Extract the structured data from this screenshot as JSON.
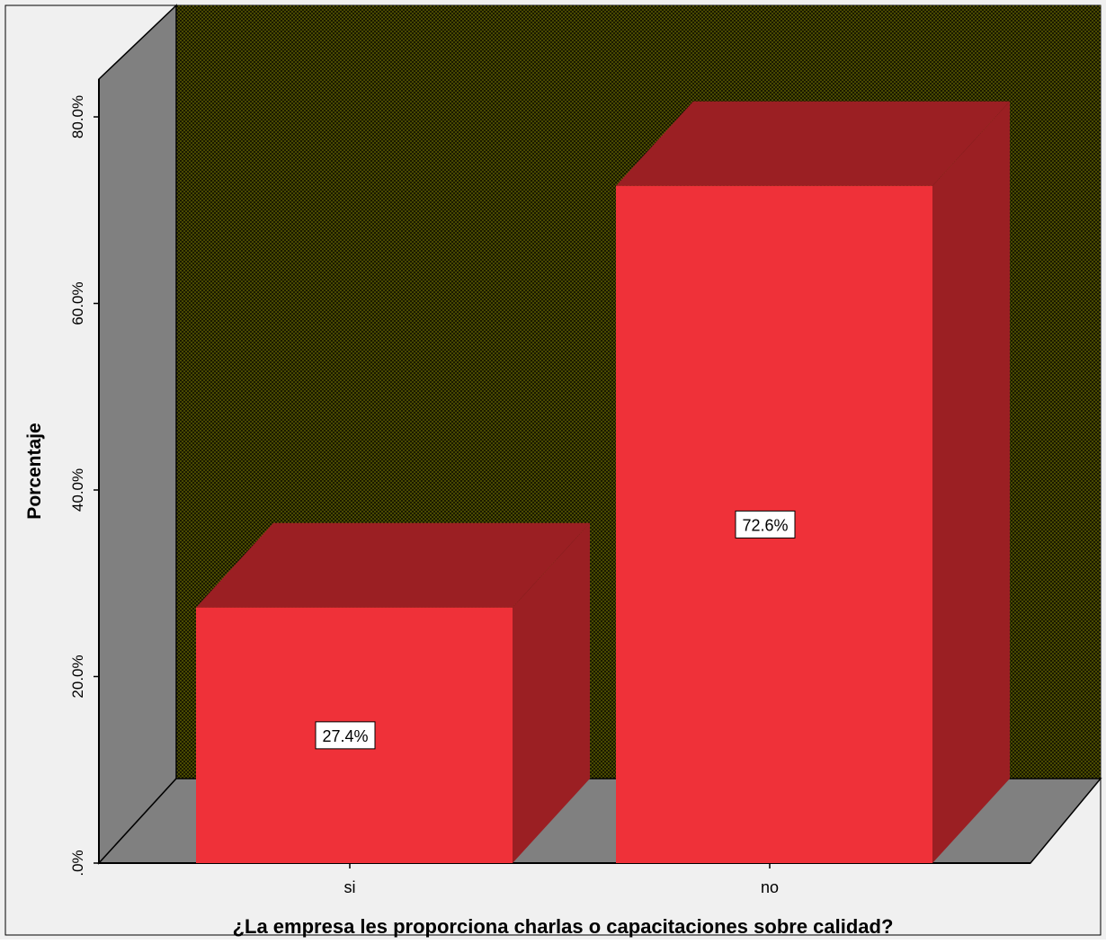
{
  "chart_data": {
    "type": "bar",
    "title": "",
    "xlabel": "¿La empresa les proporciona charlas o capacitaciones sobre calidad?",
    "ylabel": "Porcentaje",
    "categories": [
      "si",
      "no"
    ],
    "values": [
      27.4,
      72.6
    ],
    "value_labels": [
      "27.4%",
      "72.6%"
    ],
    "yticks": [
      {
        "value": 0,
        "label": ".0%"
      },
      {
        "value": 20,
        "label": "20.0%"
      },
      {
        "value": 40,
        "label": "40.0%"
      },
      {
        "value": 60,
        "label": "60.0%"
      },
      {
        "value": 80,
        "label": "80.0%"
      }
    ],
    "ylim": [
      0,
      80
    ],
    "style": "3d",
    "grid": false,
    "legend": "none",
    "colors": {
      "bar_front": "#ef3139",
      "bar_side": "#9b1f23",
      "back_wall": "#1a1a00",
      "back_wall_pattern": "#8a8a00",
      "side_wall": "#808080",
      "floor": "#808080",
      "frame_background": "#f0f0f0"
    }
  }
}
